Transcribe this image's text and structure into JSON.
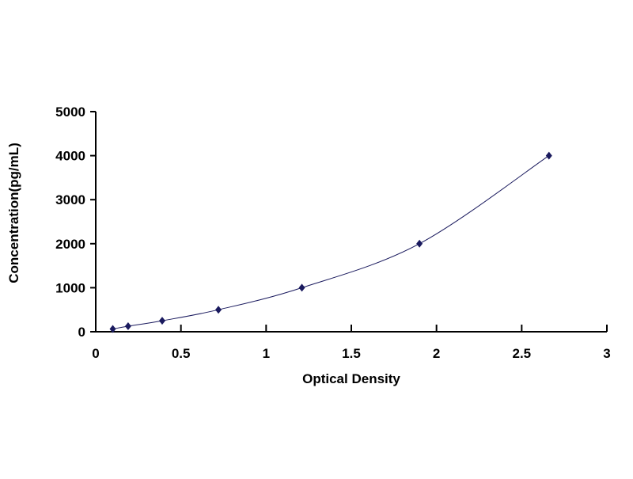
{
  "chart_data": {
    "type": "scatter",
    "title": "",
    "xlabel": "Optical Density",
    "ylabel": "Concentration(pg/mL)",
    "xlim": [
      0,
      3
    ],
    "ylim": [
      0,
      5000
    ],
    "xticks": [
      "0",
      "0.5",
      "1",
      "1.5",
      "2",
      "2.5",
      "3"
    ],
    "yticks": [
      "0",
      "1000",
      "2000",
      "3000",
      "4000",
      "5000"
    ],
    "grid": false,
    "legend": "none",
    "marker": "diamond",
    "line": "smooth",
    "color": "#1a1a5e",
    "x": [
      0.1,
      0.19,
      0.39,
      0.72,
      1.21,
      1.9,
      2.66
    ],
    "y": [
      62.5,
      125,
      250,
      500,
      1000,
      2000,
      4000
    ]
  }
}
